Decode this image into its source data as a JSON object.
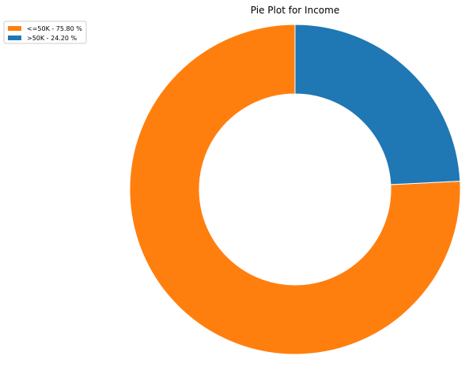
{
  "chart_data": {
    "type": "pie",
    "donut": true,
    "title": "Pie Plot for Income",
    "slices": [
      {
        "label": "<=50K - 75.80 %",
        "value": 75.8,
        "color": "#ff7f0e"
      },
      {
        "label": ">50K - 24.20 %",
        "value": 24.2,
        "color": "#1f77b4"
      }
    ],
    "start_angle_deg": 90,
    "direction": "counterclockwise",
    "legend": {
      "position": "top-left"
    }
  }
}
